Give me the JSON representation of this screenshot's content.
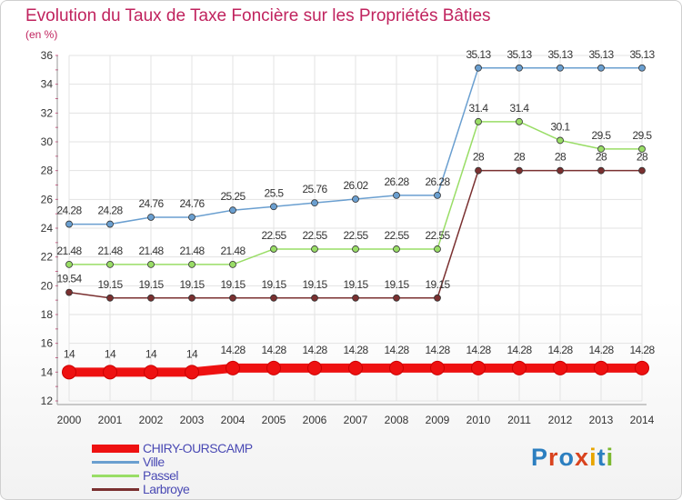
{
  "title": "Evolution du Taux de Taxe Foncière sur les Propriétés Bâties",
  "subtitle": "(en %)",
  "logo": {
    "text": "Proxiti",
    "colors": [
      "#2c7fc0",
      "#d9431e",
      "#2c7fc0",
      "#d9431e",
      "#e8a500",
      "#2c7fc0",
      "#7cb82f"
    ]
  },
  "chart_data": {
    "type": "line",
    "title": "Evolution du Taux de Taxe Foncière sur les Propriétés Bâties",
    "ylabel": "(en %)",
    "xlabel": "",
    "ylim": [
      12,
      36
    ],
    "yticks": [
      12,
      14,
      16,
      18,
      20,
      22,
      24,
      26,
      28,
      30,
      32,
      34,
      36
    ],
    "x": [
      2000,
      2001,
      2002,
      2003,
      2004,
      2005,
      2006,
      2007,
      2008,
      2009,
      2010,
      2011,
      2012,
      2013,
      2014
    ],
    "series": [
      {
        "name": "CHIRY-OURSCAMP",
        "color": "#ee1111",
        "values": [
          14,
          14,
          14,
          14,
          14.28,
          14.28,
          14.28,
          14.28,
          14.28,
          14.28,
          14.28,
          14.28,
          14.28,
          14.28,
          14.28
        ],
        "labels": [
          "14",
          "14",
          "14",
          "14",
          "14.28",
          "14.28",
          "14.28",
          "14.28",
          "14.28",
          "14.28",
          "14.28",
          "14.28",
          "14.28",
          "14.28",
          "14.28"
        ]
      },
      {
        "name": "Ville",
        "color": "#6a9fd0",
        "values": [
          24.28,
          24.28,
          24.76,
          24.76,
          25.25,
          25.5,
          25.76,
          26.02,
          26.28,
          26.28,
          35.13,
          35.13,
          35.13,
          35.13,
          35.13
        ],
        "labels": [
          "24.28",
          "24.28",
          "24.76",
          "24.76",
          "25.25",
          "25.5",
          "25.76",
          "26.02",
          "26.28",
          "26.28",
          "35.13",
          "35.13",
          "35.13",
          "35.13",
          "35.13"
        ]
      },
      {
        "name": "Passel",
        "color": "#99dd66",
        "values": [
          21.48,
          21.48,
          21.48,
          21.48,
          21.48,
          22.55,
          22.55,
          22.55,
          22.55,
          22.55,
          31.4,
          31.4,
          30.1,
          29.5,
          29.5
        ],
        "labels": [
          "21.48",
          "21.48",
          "21.48",
          "21.48",
          "21.48",
          "22.55",
          "22.55",
          "22.55",
          "22.55",
          "22.55",
          "31.4",
          "31.4",
          "30.1",
          "29.5",
          "29.5"
        ]
      },
      {
        "name": "Larbroye",
        "color": "#7a3030",
        "values": [
          19.54,
          19.15,
          19.15,
          19.15,
          19.15,
          19.15,
          19.15,
          19.15,
          19.15,
          19.15,
          28,
          28,
          28,
          28,
          28
        ],
        "labels": [
          "19.54",
          "19.15",
          "19.15",
          "19.15",
          "19.15",
          "19.15",
          "19.15",
          "19.15",
          "19.15",
          "19.15",
          "28",
          "28",
          "28",
          "28",
          "28"
        ]
      }
    ]
  }
}
